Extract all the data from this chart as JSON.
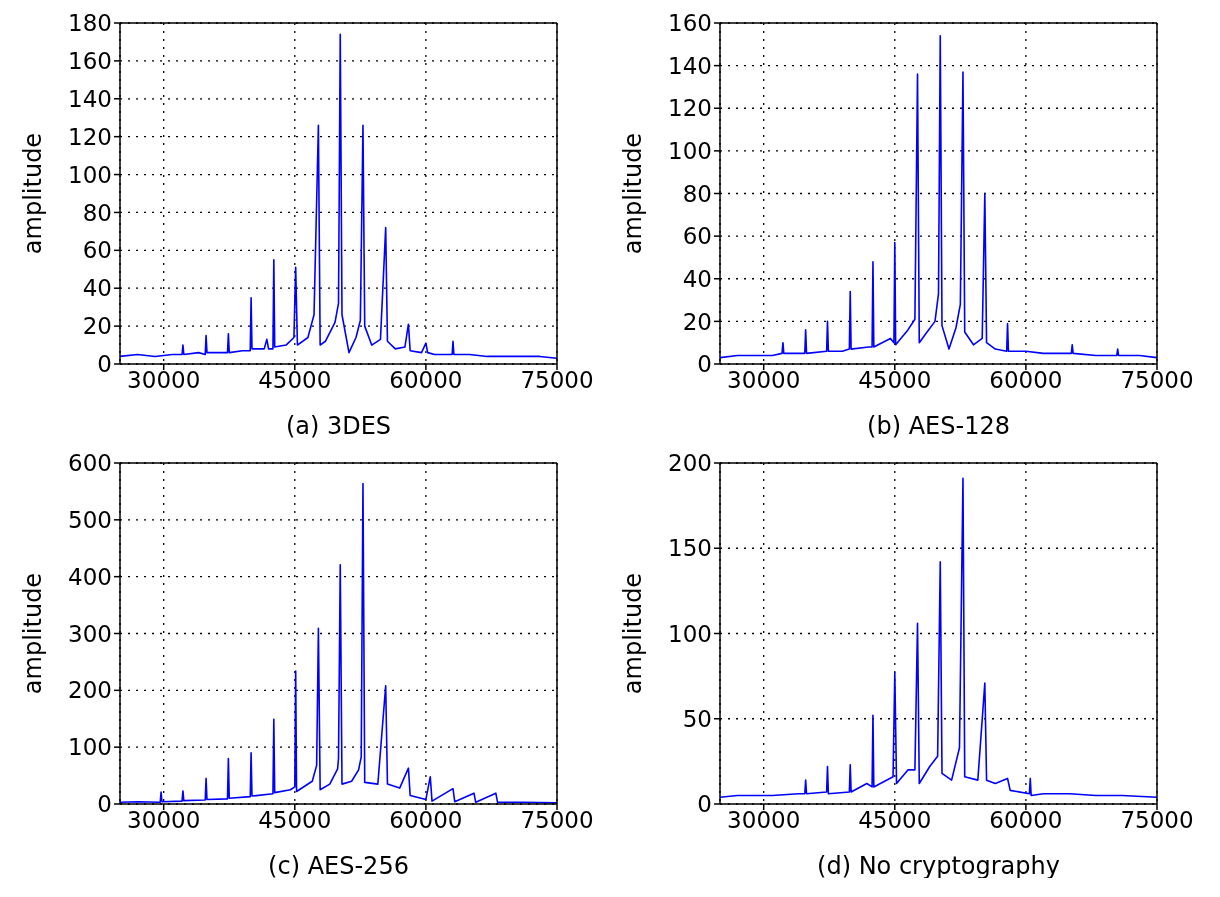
{
  "chart_data": [
    {
      "type": "line",
      "xlabel": "(a) 3DES",
      "ylabel": "amplitude",
      "color": "#0000ff",
      "grid": true,
      "marker": "none",
      "line_style": "solid",
      "xlim": [
        25000,
        75000
      ],
      "xticks": [
        30000,
        45000,
        60000,
        75000
      ],
      "ylim": [
        0,
        180
      ],
      "yticks": [
        0,
        20,
        40,
        60,
        80,
        100,
        120,
        140,
        160,
        180
      ],
      "x": [
        25000,
        27000,
        29000,
        31000,
        32100,
        32200,
        32300,
        34000,
        34750,
        34850,
        34950,
        36500,
        37300,
        37400,
        37500,
        39000,
        39900,
        40000,
        40100,
        41500,
        41800,
        42000,
        42500,
        42600,
        42700,
        44000,
        44900,
        45100,
        45300,
        46500,
        47200,
        47700,
        47900,
        48500,
        49600,
        50000,
        50200,
        50400,
        51200,
        52000,
        52500,
        52800,
        53000,
        53800,
        54800,
        55400,
        55600,
        56500,
        57600,
        58000,
        58200,
        59500,
        60000,
        60200,
        61000,
        63000,
        63100,
        63200,
        65000,
        67000,
        69000,
        71000,
        73000,
        75000
      ],
      "values": [
        4,
        5,
        4,
        5,
        5,
        10,
        5,
        6,
        5,
        15,
        6,
        6,
        6,
        16,
        6,
        7,
        7,
        35,
        8,
        8,
        13,
        8,
        8,
        55,
        9,
        10,
        14,
        51,
        10,
        14,
        26,
        126,
        10,
        12,
        22,
        32,
        174,
        26,
        6,
        14,
        23,
        126,
        20,
        10,
        13,
        72,
        12,
        8,
        9,
        21,
        7,
        6,
        11,
        6,
        5,
        5,
        12,
        5,
        5,
        4,
        4,
        4,
        4,
        3
      ]
    },
    {
      "type": "line",
      "xlabel": "(b) AES-128",
      "ylabel": "amplitude",
      "color": "#0000ff",
      "grid": true,
      "marker": "none",
      "line_style": "solid",
      "xlim": [
        25000,
        75000
      ],
      "xticks": [
        30000,
        45000,
        60000,
        75000
      ],
      "ylim": [
        0,
        160
      ],
      "yticks": [
        0,
        20,
        40,
        60,
        80,
        100,
        120,
        140,
        160
      ],
      "x": [
        25000,
        27000,
        29000,
        31000,
        32100,
        32200,
        32300,
        34000,
        34700,
        34800,
        34900,
        37200,
        37300,
        37400,
        39000,
        39800,
        39900,
        40000,
        42000,
        42400,
        42500,
        42600,
        44500,
        44900,
        45000,
        45100,
        46500,
        47300,
        47600,
        47800,
        48500,
        49600,
        50000,
        50200,
        50400,
        51200,
        52000,
        52500,
        52800,
        53000,
        54000,
        55000,
        55300,
        55500,
        56500,
        57800,
        57900,
        58000,
        60000,
        62000,
        65200,
        65300,
        65400,
        68000,
        70400,
        70500,
        70600,
        73000,
        75000
      ],
      "values": [
        3,
        4,
        4,
        4,
        5,
        10,
        5,
        5,
        5,
        16,
        5,
        6,
        20,
        6,
        6,
        7,
        34,
        7,
        8,
        8,
        48,
        8,
        12,
        10,
        57,
        9,
        16,
        21,
        136,
        10,
        14,
        20,
        33,
        154,
        18,
        7,
        17,
        28,
        137,
        15,
        9,
        12,
        80,
        10,
        7,
        6,
        19,
        6,
        6,
        5,
        5,
        9,
        5,
        4,
        4,
        7,
        4,
        4,
        3
      ]
    },
    {
      "type": "line",
      "xlabel": "(c) AES-256",
      "ylabel": "amplitude",
      "color": "#0000ff",
      "grid": true,
      "marker": "none",
      "line_style": "solid",
      "xlim": [
        25000,
        75000
      ],
      "xticks": [
        30000,
        45000,
        60000,
        75000
      ],
      "ylim": [
        0,
        600
      ],
      "yticks": [
        0,
        100,
        200,
        300,
        400,
        500,
        600
      ],
      "x": [
        25000,
        27000,
        29600,
        29700,
        29800,
        32100,
        32200,
        32300,
        34750,
        34850,
        34950,
        37300,
        37400,
        37500,
        39900,
        40000,
        40100,
        42500,
        42600,
        42700,
        44500,
        45000,
        45100,
        45200,
        47000,
        47500,
        47700,
        47900,
        49000,
        49900,
        50000,
        50200,
        50400,
        51500,
        52300,
        52600,
        52800,
        53000,
        54500,
        55400,
        55600,
        57000,
        58000,
        58200,
        60000,
        60500,
        60700,
        63100,
        63300,
        65500,
        65700,
        68000,
        68200,
        71000,
        75000
      ],
      "values": [
        3,
        4,
        3,
        21,
        4,
        5,
        23,
        6,
        7,
        45,
        8,
        9,
        80,
        10,
        13,
        90,
        14,
        18,
        149,
        20,
        25,
        30,
        234,
        22,
        40,
        68,
        309,
        25,
        35,
        62,
        80,
        421,
        35,
        40,
        60,
        83,
        564,
        38,
        35,
        208,
        35,
        28,
        63,
        15,
        8,
        48,
        5,
        27,
        4,
        19,
        3,
        19,
        3,
        3,
        2
      ]
    },
    {
      "type": "line",
      "xlabel": "(d) No cryptography",
      "ylabel": "amplitude",
      "color": "#0000ff",
      "grid": true,
      "marker": "none",
      "line_style": "solid",
      "xlim": [
        25000,
        75000
      ],
      "xticks": [
        30000,
        45000,
        60000,
        75000
      ],
      "ylim": [
        0,
        200
      ],
      "yticks": [
        0,
        50,
        100,
        150,
        200
      ],
      "x": [
        25000,
        27000,
        29000,
        31000,
        34000,
        34700,
        34800,
        34900,
        37200,
        37300,
        37400,
        39800,
        39900,
        40000,
        41800,
        42400,
        42500,
        42600,
        44800,
        45000,
        45200,
        46500,
        47300,
        47600,
        47800,
        49000,
        49900,
        50200,
        50400,
        51500,
        52400,
        52800,
        53000,
        54500,
        55300,
        55500,
        56500,
        57900,
        58200,
        60400,
        60500,
        60600,
        62000,
        65000,
        68000,
        71000,
        75000
      ],
      "values": [
        4,
        5,
        5,
        5,
        6,
        6,
        14,
        6,
        7,
        22,
        6,
        7,
        23,
        7,
        12,
        10,
        52,
        10,
        16,
        77,
        12,
        20,
        20,
        106,
        12,
        22,
        28,
        142,
        18,
        14,
        33,
        191,
        16,
        14,
        71,
        14,
        12,
        15,
        8,
        6,
        15,
        5,
        6,
        6,
        5,
        5,
        4
      ]
    }
  ]
}
